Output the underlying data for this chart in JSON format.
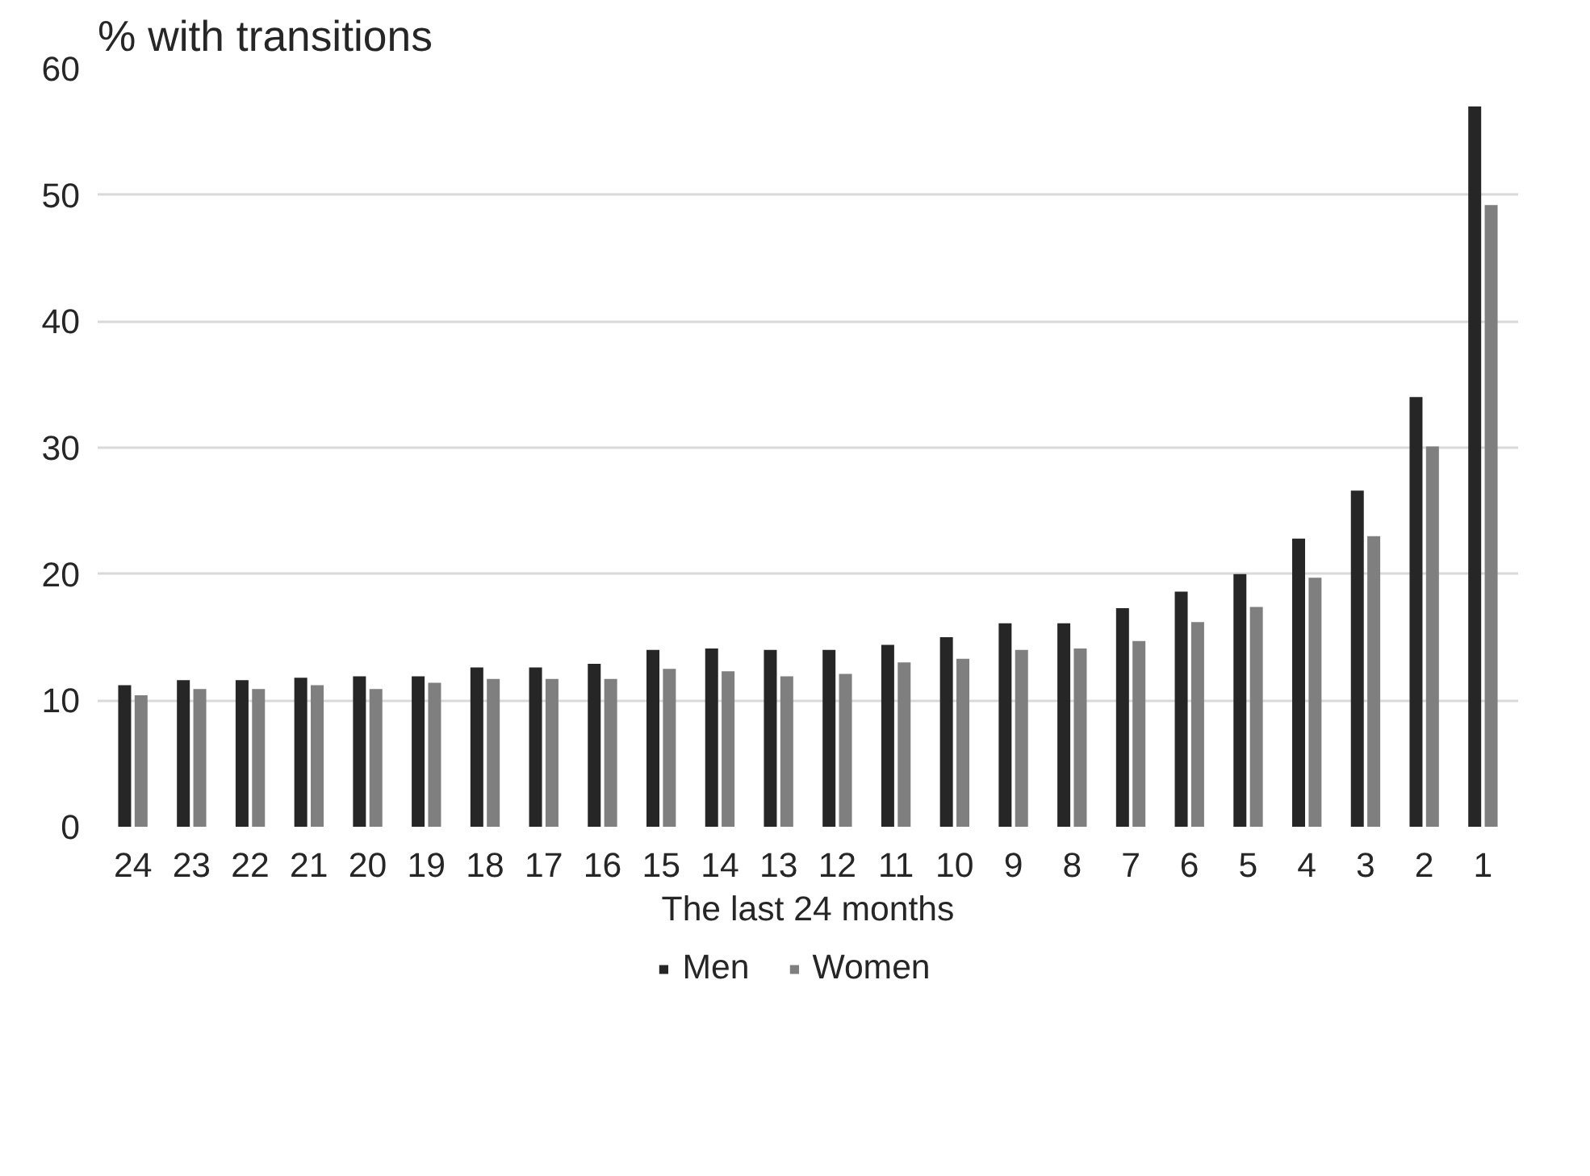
{
  "chart_data": {
    "type": "bar",
    "ylabel": "% with transitions",
    "xlabel": "The last 24 months",
    "categories": [
      "24",
      "23",
      "22",
      "21",
      "20",
      "19",
      "18",
      "17",
      "16",
      "15",
      "14",
      "13",
      "12",
      "11",
      "10",
      "9",
      "8",
      "7",
      "6",
      "5",
      "4",
      "3",
      "2",
      "1"
    ],
    "series": [
      {
        "name": "Men",
        "color": "#262626",
        "values": [
          11.2,
          11.6,
          11.6,
          11.8,
          11.9,
          11.9,
          12.6,
          12.6,
          12.9,
          14.0,
          14.1,
          14.0,
          14.0,
          14.4,
          15.0,
          16.1,
          16.1,
          17.3,
          18.6,
          20.0,
          22.8,
          26.6,
          34.0,
          57.0
        ]
      },
      {
        "name": "Women",
        "color": "#7f7f7f",
        "values": [
          10.4,
          10.9,
          10.9,
          11.2,
          10.9,
          11.4,
          11.7,
          11.7,
          11.7,
          12.5,
          12.3,
          11.9,
          12.1,
          13.0,
          13.3,
          14.0,
          14.1,
          14.7,
          16.2,
          17.4,
          19.7,
          23.0,
          30.1,
          49.2
        ]
      }
    ],
    "ylim": [
      0,
      60
    ],
    "yticks": [
      0,
      10,
      20,
      30,
      40,
      50,
      60
    ],
    "grid": "y",
    "legend": "bottom"
  }
}
